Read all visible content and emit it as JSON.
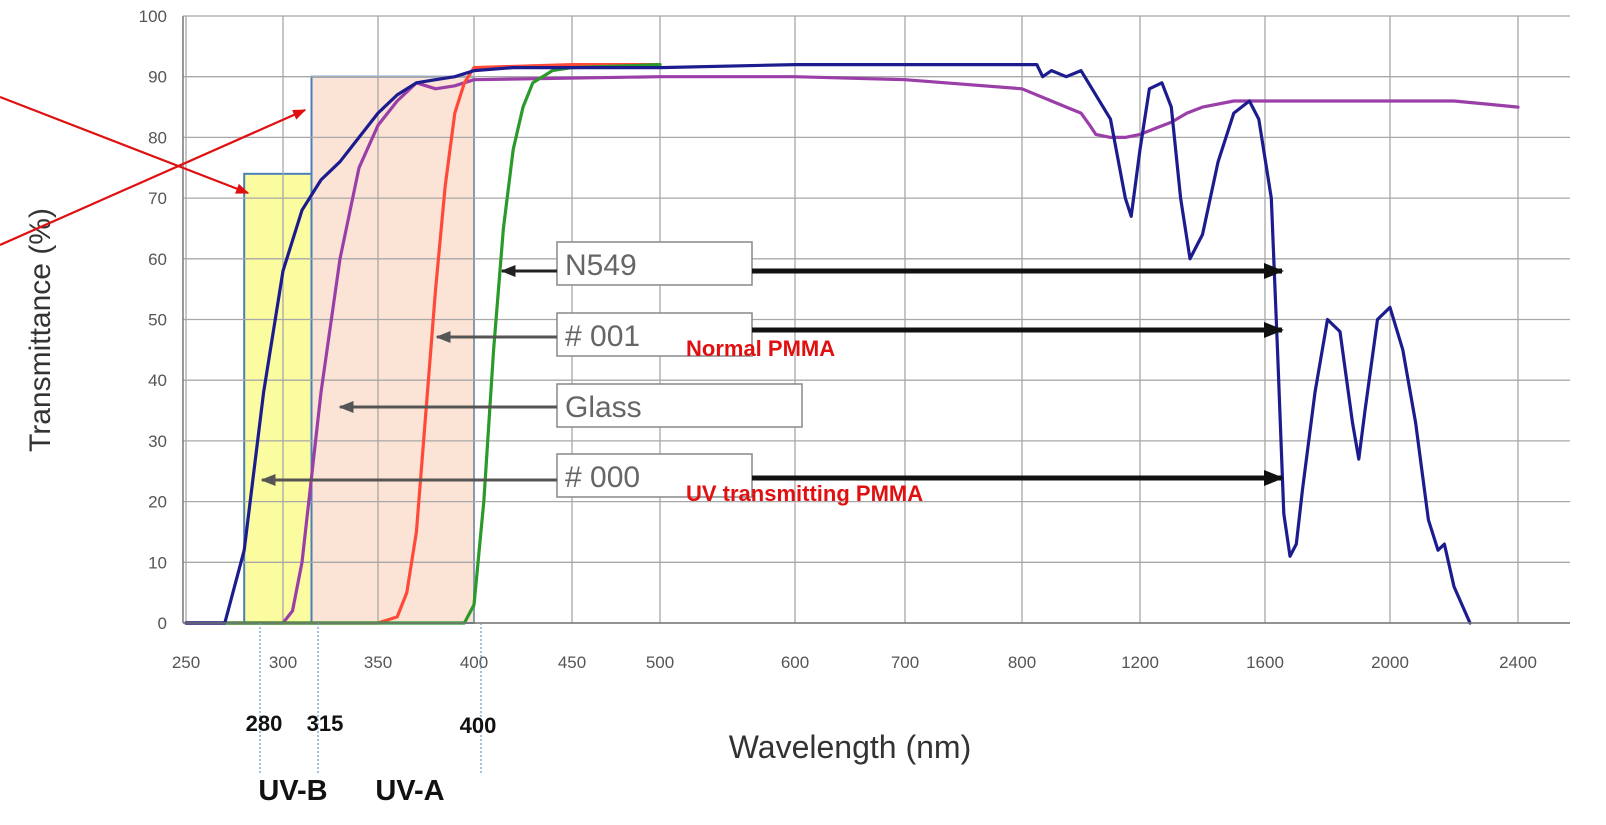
{
  "chart_data": {
    "type": "line",
    "title": "",
    "xlabel": "Wavelength (nm)",
    "ylabel": "Transmittance (%)",
    "ylim": [
      0,
      100
    ],
    "y_ticks": [
      "0",
      "10",
      "20",
      "30",
      "40",
      "50",
      "60",
      "70",
      "80",
      "90",
      "100"
    ],
    "x_ticks": [
      "250",
      "300",
      "350",
      "400",
      "450",
      "500",
      "600",
      "700",
      "800",
      "1200",
      "1600",
      "2000",
      "2400"
    ],
    "x_scale": "piecewise",
    "grid": true,
    "series": [
      {
        "key": "n549",
        "color": "#1c1c8f",
        "x": [
          250,
          270,
          280,
          290,
          300,
          310,
          320,
          330,
          340,
          350,
          360,
          370,
          380,
          390,
          400,
          420,
          450,
          500,
          600,
          700,
          800,
          850,
          870,
          900,
          950,
          1000,
          1050,
          1100,
          1150,
          1170,
          1200,
          1230,
          1270,
          1300,
          1330,
          1360,
          1400,
          1450,
          1500,
          1550,
          1580,
          1620,
          1640,
          1660,
          1680,
          1700,
          1720,
          1760,
          1800,
          1840,
          1880,
          1900,
          1920,
          1960,
          2000,
          2040,
          2080,
          2120,
          2150,
          2170,
          2200,
          2250
        ],
        "y": [
          0,
          0,
          12,
          38,
          58,
          68,
          73,
          76,
          80,
          84,
          87,
          89,
          89.5,
          90,
          91,
          91.5,
          91.5,
          91.5,
          92,
          92,
          92,
          92,
          90,
          91,
          90,
          91,
          87,
          83,
          70,
          67,
          78,
          88,
          89,
          85,
          70,
          60,
          64,
          76,
          84,
          86,
          83,
          70,
          45,
          18,
          11,
          13,
          22,
          38,
          50,
          48,
          33,
          27,
          35,
          50,
          52,
          45,
          33,
          17,
          12,
          13,
          6,
          0
        ]
      },
      {
        "key": "glass",
        "color": "#9b3fa8",
        "x": [
          250,
          300,
          305,
          310,
          320,
          330,
          340,
          350,
          360,
          370,
          380,
          390,
          400,
          500,
          600,
          700,
          800,
          900,
          950,
          1000,
          1030,
          1050,
          1100,
          1150,
          1200,
          1250,
          1300,
          1350,
          1400,
          1500,
          1600,
          1700,
          1800,
          1900,
          2000,
          2100,
          2200,
          2300,
          2400
        ],
        "y": [
          0,
          0,
          2,
          10,
          38,
          60,
          75,
          82,
          86,
          89,
          88,
          88.5,
          89.5,
          90,
          90,
          89.5,
          88,
          86,
          85,
          84,
          82,
          80.5,
          80,
          80,
          80.5,
          81.5,
          82.5,
          84,
          85,
          86,
          86,
          86,
          86,
          86,
          86,
          86,
          86,
          85.5,
          85
        ]
      },
      {
        "key": "pmma001",
        "color": "#ff4a3a",
        "x": [
          250,
          350,
          360,
          365,
          370,
          375,
          380,
          385,
          390,
          395,
          400,
          450,
          500
        ],
        "y": [
          0,
          0,
          1,
          5,
          15,
          35,
          55,
          72,
          84,
          89,
          91.5,
          92,
          92
        ]
      },
      {
        "key": "pmma000",
        "color": "#2a9a2a",
        "x": [
          250,
          395,
          400,
          405,
          410,
          415,
          420,
          425,
          430,
          440,
          450,
          500
        ],
        "y": [
          0,
          0,
          3,
          20,
          45,
          65,
          78,
          85,
          89,
          91,
          91.5,
          92
        ]
      }
    ],
    "labels": {
      "n549": "N549",
      "pmma001": "# 001",
      "glass": "Glass",
      "pmma000": "# 000",
      "pmma001_note": "Normal PMMA",
      "pmma000_note": "UV transmitting PMMA"
    },
    "bands": [
      {
        "name": "UV-B",
        "from": 280,
        "to": 315,
        "color": "#fbfba0",
        "top_pct": 74
      },
      {
        "name": "UV-A",
        "from": 315,
        "to": 400,
        "color": "#fbe3d5",
        "top_pct": 90
      }
    ],
    "band_boundaries": [
      "280",
      "315",
      "400"
    ]
  }
}
